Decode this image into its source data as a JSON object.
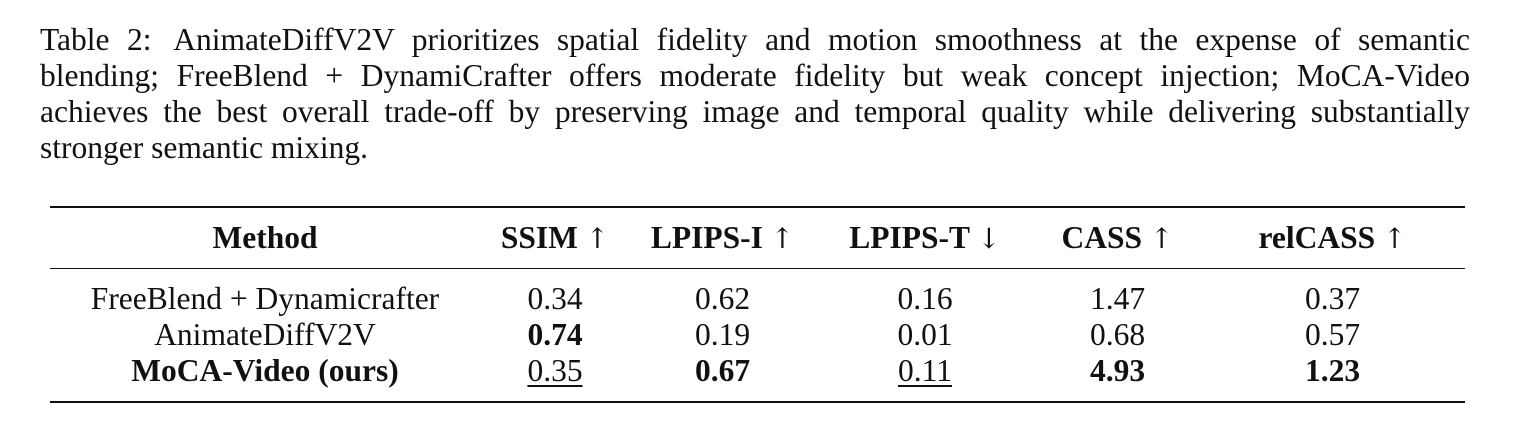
{
  "caption": {
    "label": "Table 2:",
    "text": "AnimateDiffV2V prioritizes spatial fidelity and motion smoothness at the expense of semantic blending; FreeBlend + DynamiCrafter offers moderate fidelity but weak concept injection; MoCA-Video  achieves the best overall trade-off by preserving image and temporal quality while delivering substantially stronger semantic mixing."
  },
  "table": {
    "headers": [
      {
        "label": "Method",
        "arrow": ""
      },
      {
        "label": "SSIM",
        "arrow": "↑"
      },
      {
        "label": "LPIPS-I",
        "arrow": "↑"
      },
      {
        "label": "LPIPS-T",
        "arrow": "↓"
      },
      {
        "label": "CASS",
        "arrow": "↑"
      },
      {
        "label": "relCASS",
        "arrow": "↑"
      }
    ],
    "rows": [
      {
        "method": "FreeBlend + Dynamicrafter",
        "ssim": "0.34",
        "lpips_i": "0.62",
        "lpips_t": "0.16",
        "cass": "1.47",
        "relcass": "0.37"
      },
      {
        "method": "AnimateDiffV2V",
        "ssim": "0.74",
        "lpips_i": "0.19",
        "lpips_t": "0.01",
        "cass": "0.68",
        "relcass": "0.57"
      },
      {
        "method": "MoCA-Video (ours)",
        "ssim": "0.35",
        "lpips_i": "0.67",
        "lpips_t": "0.11",
        "cass": "4.93",
        "relcass": "1.23"
      }
    ]
  }
}
